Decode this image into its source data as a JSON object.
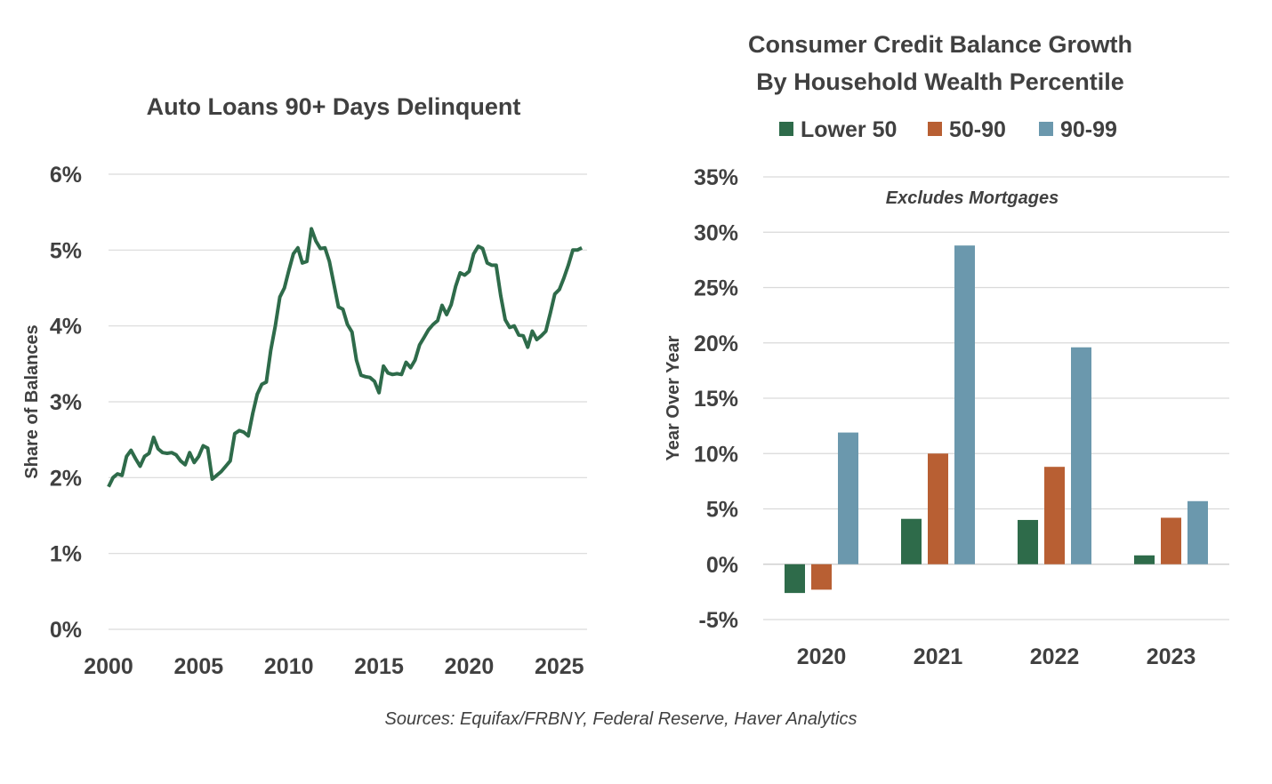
{
  "sources": "Sources: Equifax/FRBNY, Federal Reserve, Haver Analytics",
  "chart_data": [
    {
      "type": "line",
      "title": "Auto Loans 90+ Days Delinquent",
      "xlabel": "",
      "ylabel": "Share of Balances",
      "xlim": [
        2000,
        2025.75
      ],
      "ylim": [
        0,
        6
      ],
      "x_ticks": [
        "2000",
        "2005",
        "2010",
        "2015",
        "2020",
        "2025"
      ],
      "y_ticks": [
        "0%",
        "1%",
        "2%",
        "3%",
        "4%",
        "5%",
        "6%"
      ],
      "grid": true,
      "series": [
        {
          "color": "#2e6b4a",
          "points": [
            [
              2000.0,
              1.88
            ],
            [
              2000.25,
              2.0
            ],
            [
              2000.5,
              2.05
            ],
            [
              2000.75,
              2.03
            ],
            [
              2001.0,
              2.28
            ],
            [
              2001.25,
              2.36
            ],
            [
              2001.5,
              2.25
            ],
            [
              2001.75,
              2.15
            ],
            [
              2002.0,
              2.28
            ],
            [
              2002.25,
              2.32
            ],
            [
              2002.5,
              2.53
            ],
            [
              2002.75,
              2.38
            ],
            [
              2003.0,
              2.33
            ],
            [
              2003.25,
              2.32
            ],
            [
              2003.5,
              2.33
            ],
            [
              2003.75,
              2.3
            ],
            [
              2004.0,
              2.22
            ],
            [
              2004.25,
              2.17
            ],
            [
              2004.5,
              2.33
            ],
            [
              2004.75,
              2.2
            ],
            [
              2005.0,
              2.28
            ],
            [
              2005.25,
              2.42
            ],
            [
              2005.5,
              2.39
            ],
            [
              2005.75,
              1.98
            ],
            [
              2006.0,
              2.03
            ],
            [
              2006.25,
              2.08
            ],
            [
              2006.5,
              2.15
            ],
            [
              2006.75,
              2.22
            ],
            [
              2007.0,
              2.58
            ],
            [
              2007.25,
              2.62
            ],
            [
              2007.5,
              2.6
            ],
            [
              2007.75,
              2.55
            ],
            [
              2008.0,
              2.85
            ],
            [
              2008.25,
              3.1
            ],
            [
              2008.5,
              3.23
            ],
            [
              2008.75,
              3.26
            ],
            [
              2009.0,
              3.68
            ],
            [
              2009.25,
              4.0
            ],
            [
              2009.5,
              4.38
            ],
            [
              2009.75,
              4.5
            ],
            [
              2010.0,
              4.73
            ],
            [
              2010.25,
              4.95
            ],
            [
              2010.5,
              5.03
            ],
            [
              2010.75,
              4.83
            ],
            [
              2011.0,
              4.85
            ],
            [
              2011.25,
              5.28
            ],
            [
              2011.5,
              5.12
            ],
            [
              2011.75,
              5.02
            ],
            [
              2012.0,
              5.03
            ],
            [
              2012.25,
              4.85
            ],
            [
              2012.5,
              4.55
            ],
            [
              2012.75,
              4.25
            ],
            [
              2013.0,
              4.22
            ],
            [
              2013.25,
              4.02
            ],
            [
              2013.5,
              3.92
            ],
            [
              2013.75,
              3.55
            ],
            [
              2014.0,
              3.35
            ],
            [
              2014.25,
              3.33
            ],
            [
              2014.5,
              3.32
            ],
            [
              2014.75,
              3.27
            ],
            [
              2015.0,
              3.12
            ],
            [
              2015.25,
              3.47
            ],
            [
              2015.5,
              3.38
            ],
            [
              2015.75,
              3.36
            ],
            [
              2016.0,
              3.37
            ],
            [
              2016.25,
              3.36
            ],
            [
              2016.5,
              3.52
            ],
            [
              2016.75,
              3.45
            ],
            [
              2017.0,
              3.55
            ],
            [
              2017.25,
              3.75
            ],
            [
              2017.5,
              3.85
            ],
            [
              2017.75,
              3.95
            ],
            [
              2018.0,
              4.02
            ],
            [
              2018.25,
              4.07
            ],
            [
              2018.5,
              4.27
            ],
            [
              2018.75,
              4.15
            ],
            [
              2019.0,
              4.28
            ],
            [
              2019.25,
              4.52
            ],
            [
              2019.5,
              4.7
            ],
            [
              2019.75,
              4.67
            ],
            [
              2020.0,
              4.72
            ],
            [
              2020.25,
              4.95
            ],
            [
              2020.5,
              5.05
            ],
            [
              2020.75,
              5.02
            ],
            [
              2021.0,
              4.83
            ],
            [
              2021.25,
              4.8
            ],
            [
              2021.5,
              4.8
            ],
            [
              2021.75,
              4.4
            ],
            [
              2022.0,
              4.08
            ],
            [
              2022.25,
              3.98
            ],
            [
              2022.5,
              4.0
            ],
            [
              2022.75,
              3.88
            ],
            [
              2023.0,
              3.87
            ],
            [
              2023.25,
              3.72
            ],
            [
              2023.5,
              3.93
            ],
            [
              2023.75,
              3.82
            ],
            [
              2024.0,
              3.87
            ],
            [
              2024.25,
              3.93
            ],
            [
              2024.5,
              4.17
            ],
            [
              2024.75,
              4.42
            ],
            [
              2025.0,
              4.48
            ],
            [
              2025.25,
              4.63
            ],
            [
              2025.5,
              4.8
            ],
            [
              2025.75,
              5.0
            ],
            [
              2026.0,
              5.0
            ],
            [
              2026.25,
              5.03
            ]
          ]
        }
      ]
    },
    {
      "type": "bar",
      "title": "Consumer Credit Balance Growth",
      "subtitle": "By Household Wealth Percentile",
      "annotation": "Excludes Mortgages",
      "xlabel": "",
      "ylabel": "Year Over Year",
      "categories": [
        "2020",
        "2021",
        "2022",
        "2023"
      ],
      "ylim": [
        -5,
        35
      ],
      "y_ticks": [
        "-5%",
        "0%",
        "5%",
        "10%",
        "15%",
        "20%",
        "25%",
        "30%",
        "35%"
      ],
      "grid": true,
      "legend_position": "top",
      "series": [
        {
          "name": "Lower 50",
          "color": "#2e6b4a",
          "values": [
            -2.6,
            4.1,
            4.0,
            0.8
          ]
        },
        {
          "name": "50-90",
          "color": "#b85f33",
          "values": [
            -2.3,
            10.0,
            8.8,
            4.2
          ]
        },
        {
          "name": "90-99",
          "color": "#6b98ad",
          "values": [
            11.9,
            28.8,
            19.6,
            5.7
          ]
        }
      ]
    }
  ]
}
